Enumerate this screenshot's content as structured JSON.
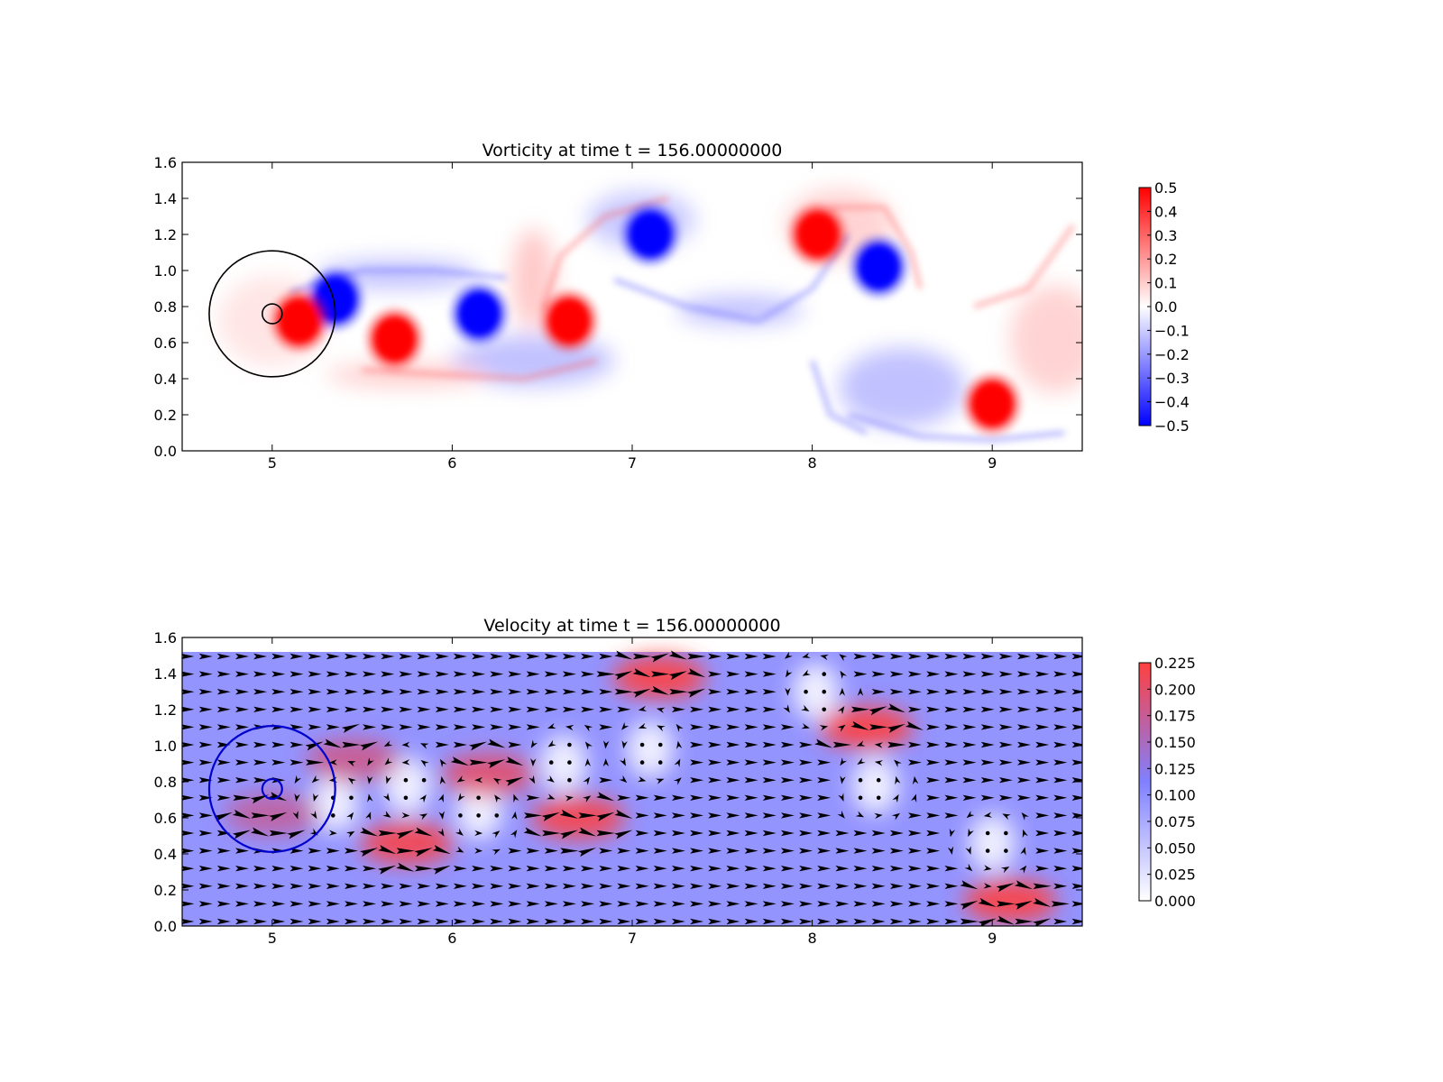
{
  "chart_data": [
    {
      "type": "heatmap",
      "title": "Vorticity at time t =   156.00000000",
      "xlabel": "",
      "ylabel": "",
      "xlim": [
        4.5,
        9.5
      ],
      "ylim": [
        0.0,
        1.6
      ],
      "xticks": [
        "5",
        "6",
        "7",
        "8",
        "9"
      ],
      "yticks": [
        "0.0",
        "0.2",
        "0.4",
        "0.6",
        "0.8",
        "1.0",
        "1.2",
        "1.4",
        "1.6"
      ],
      "colorbar": {
        "range": [
          -0.5,
          0.5
        ],
        "colors": [
          "#0000ff",
          "#ffffff",
          "#ff0000"
        ],
        "ticks": [
          "0.5",
          "0.4",
          "0.3",
          "0.2",
          "0.1",
          "0.0",
          "−0.1",
          "−0.2",
          "−0.3",
          "−0.4",
          "−0.5"
        ]
      },
      "vortices": [
        {
          "x": 5.35,
          "y": 0.84,
          "value": -0.5
        },
        {
          "x": 5.15,
          "y": 0.72,
          "value": 0.5
        },
        {
          "x": 5.68,
          "y": 0.62,
          "value": 0.5
        },
        {
          "x": 6.15,
          "y": 0.76,
          "value": -0.5
        },
        {
          "x": 6.65,
          "y": 0.72,
          "value": 0.5
        },
        {
          "x": 7.1,
          "y": 1.2,
          "value": -0.5
        },
        {
          "x": 8.03,
          "y": 1.2,
          "value": 0.5
        },
        {
          "x": 8.37,
          "y": 1.02,
          "value": -0.5
        },
        {
          "x": 9.0,
          "y": 0.26,
          "value": 0.5
        }
      ],
      "annotations": [
        {
          "shape": "circle",
          "cx": 5.0,
          "cy": 0.76,
          "r": 0.35,
          "color": "#000000"
        },
        {
          "shape": "circle",
          "cx": 5.0,
          "cy": 0.76,
          "r": 0.055,
          "color": "#000000"
        }
      ]
    },
    {
      "type": "heatmap",
      "title": "Velocity at time t =   156.00000000",
      "xlabel": "",
      "ylabel": "",
      "xlim": [
        4.5,
        9.5
      ],
      "ylim": [
        0.0,
        1.6
      ],
      "xticks": [
        "5",
        "6",
        "7",
        "8",
        "9"
      ],
      "yticks": [
        "0.0",
        "0.2",
        "0.4",
        "0.6",
        "0.8",
        "1.0",
        "1.2",
        "1.4",
        "1.6"
      ],
      "field_ymax": 1.52,
      "overlay": "quiver",
      "colorbar": {
        "range": [
          0.0,
          0.225
        ],
        "colors": [
          "#ffffff",
          "#8080ff",
          "#ff4040"
        ],
        "ticks": [
          "0.225",
          "0.200",
          "0.175",
          "0.150",
          "0.125",
          "0.100",
          "0.075",
          "0.050",
          "0.025",
          "0.000"
        ]
      },
      "jets": [
        {
          "x": 7.15,
          "y": 1.38,
          "speed": 0.225
        },
        {
          "x": 8.3,
          "y": 1.1,
          "speed": 0.225
        },
        {
          "x": 6.7,
          "y": 0.6,
          "speed": 0.22
        },
        {
          "x": 5.75,
          "y": 0.46,
          "speed": 0.22
        },
        {
          "x": 9.1,
          "y": 0.14,
          "speed": 0.225
        },
        {
          "x": 6.2,
          "y": 0.84,
          "speed": 0.2
        },
        {
          "x": 5.45,
          "y": 0.92,
          "speed": 0.18
        },
        {
          "x": 5.0,
          "y": 0.62,
          "speed": 0.17
        }
      ],
      "calm_zones": [
        {
          "x": 5.75,
          "y": 0.78
        },
        {
          "x": 6.15,
          "y": 0.64
        },
        {
          "x": 6.62,
          "y": 0.9
        },
        {
          "x": 7.1,
          "y": 0.98
        },
        {
          "x": 8.35,
          "y": 0.78
        },
        {
          "x": 9.0,
          "y": 0.46
        },
        {
          "x": 8.02,
          "y": 1.3
        },
        {
          "x": 5.35,
          "y": 0.68
        }
      ],
      "annotations": [
        {
          "shape": "circle",
          "cx": 5.0,
          "cy": 0.76,
          "r": 0.35,
          "color": "#0000cc"
        },
        {
          "shape": "circle",
          "cx": 5.0,
          "cy": 0.76,
          "r": 0.055,
          "color": "#0000cc"
        }
      ]
    }
  ]
}
